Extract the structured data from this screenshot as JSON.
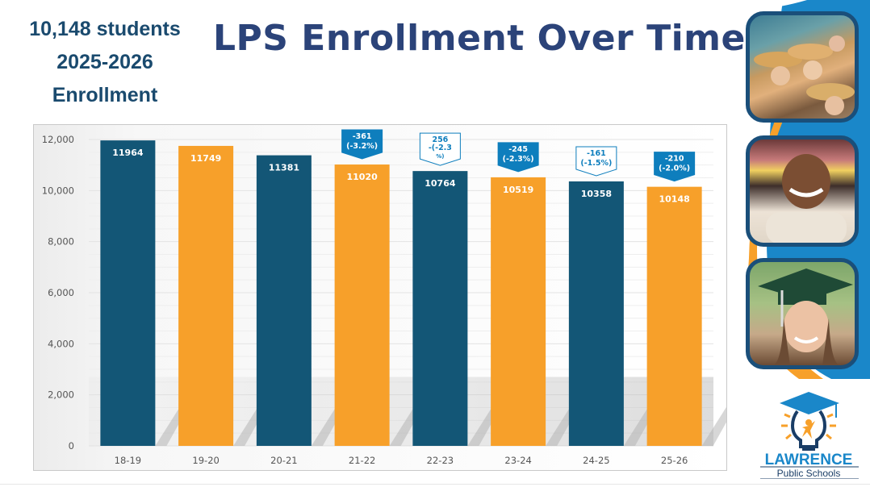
{
  "header": {
    "stat_lines": [
      "10,148 students",
      "2025-2026",
      "Enrollment"
    ],
    "title": "LPS Enrollment Over Time"
  },
  "colors": {
    "navy": "#135676",
    "orange": "#f7a02a",
    "title": "#2b4379",
    "stat": "#1a4a6e",
    "callout": "#0e7ebd",
    "side_blue": "#1a87c9"
  },
  "photos": [
    {
      "description": "students-in-straw-hats"
    },
    {
      "description": "smiling-child"
    },
    {
      "description": "graduate-in-cap"
    }
  ],
  "logo": {
    "name": "LAWRENCE",
    "subtitle": "Public Schools"
  },
  "chart_data": {
    "type": "bar",
    "title": "LPS Enrollment Over Time",
    "xlabel": "",
    "ylabel": "",
    "ylim": [
      0,
      12000
    ],
    "yticks": [
      0,
      2000,
      4000,
      6000,
      8000,
      10000,
      12000
    ],
    "ytick_labels": [
      "0",
      "2,000",
      "4,000",
      "6,000",
      "8,000",
      "10,000",
      "12,000"
    ],
    "grid": true,
    "categories": [
      "18-19",
      "19-20",
      "20-21",
      "21-22",
      "22-23",
      "23-24",
      "24-25",
      "25-26"
    ],
    "values": [
      11964,
      11749,
      11381,
      11020,
      10764,
      10519,
      10358,
      10148
    ],
    "value_labels": [
      "11964",
      "11749",
      "11381",
      "11020",
      "10764",
      "10519",
      "10358",
      "10148"
    ],
    "bar_colors": [
      "navy",
      "orange",
      "navy",
      "orange",
      "navy",
      "orange",
      "navy",
      "orange"
    ],
    "annotations": [
      {
        "category": "21-22",
        "lines": [
          "-361",
          "(-3.2%)"
        ],
        "style": "filled"
      },
      {
        "category": "22-23",
        "lines": [
          "256",
          "-(-2.3",
          "%)"
        ],
        "style": "outline"
      },
      {
        "category": "23-24",
        "lines": [
          "-245",
          "(-2.3%)"
        ],
        "style": "filled"
      },
      {
        "category": "24-25",
        "lines": [
          "-161",
          "(-1.5%)"
        ],
        "style": "outline"
      },
      {
        "category": "25-26",
        "lines": [
          "-210",
          "(-2.0%)"
        ],
        "style": "filled"
      }
    ]
  }
}
